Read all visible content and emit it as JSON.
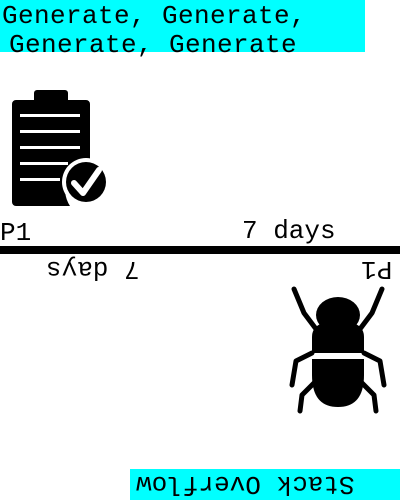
{
  "title": {
    "line1": "Generate, Generate,",
    "line2": "Generate, Generate"
  },
  "top_card": {
    "priority": "P1",
    "duration": "7 days",
    "icon": "clipboard-check-icon"
  },
  "bottom_card": {
    "priority": "P1",
    "duration": "7 days",
    "icon": "bug-icon"
  },
  "footer": {
    "label": "Stack Overflow"
  },
  "colors": {
    "highlight": "#00ffff",
    "ink": "#000000"
  }
}
